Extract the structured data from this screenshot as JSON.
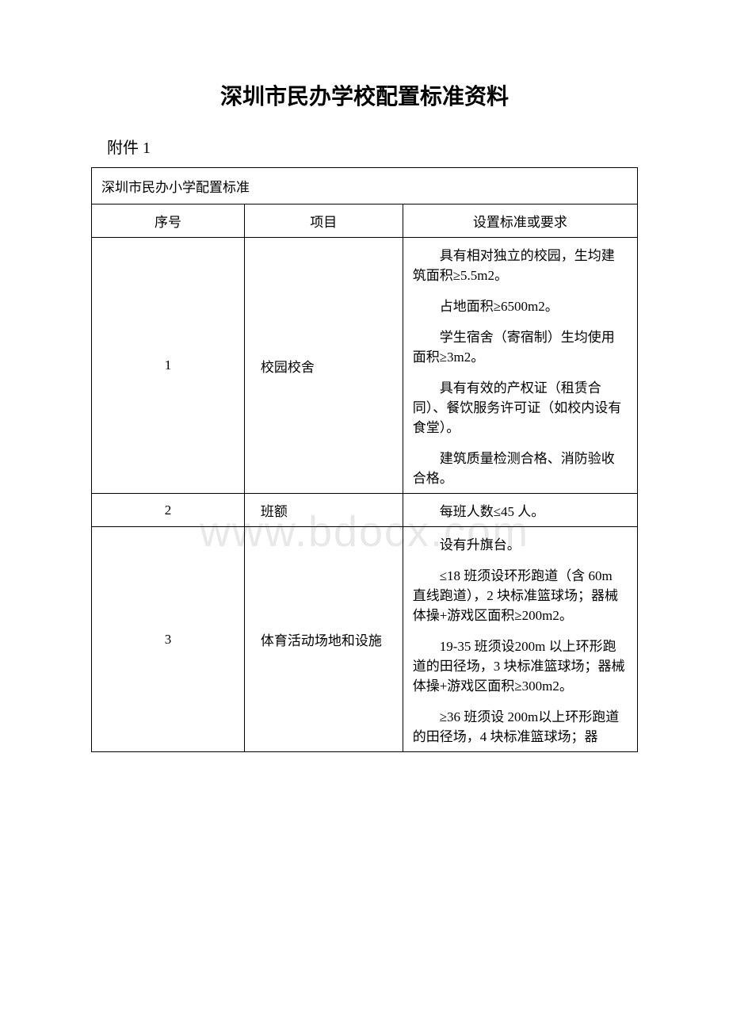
{
  "title": "深圳市民办学校配置标准资料",
  "subtitle": "附件 1",
  "watermark": "www.bdocx.com",
  "table": {
    "caption": "深圳市民办小学配置标准",
    "headers": {
      "seq": "序号",
      "item": "项目",
      "req": "设置标准或要求"
    },
    "rows": [
      {
        "seq": "1",
        "item": "校园校舍",
        "reqs": [
          "具有相对独立的校园，生均建筑面积≥5.5m2。",
          "占地面积≥6500m2。",
          "学生宿舍（寄宿制）生均使用面积≥3m2。",
          "具有有效的产权证（租赁合同）、餐饮服务许可证（如校内设有食堂）。",
          "建筑质量检测合格、消防验收合格。"
        ]
      },
      {
        "seq": "2",
        "item": "班额",
        "reqs": [
          "每班人数≤45 人。"
        ]
      },
      {
        "seq": "3",
        "item": "体育活动场地和设施",
        "reqs": [
          "设有升旗台。",
          "≤18 班须设环形跑道（含 60m 直线跑道），2 块标准篮球场；器械体操+游戏区面积≥200m2。",
          "19-35 班须设200m 以上环形跑道的田径场，3 块标准篮球场；器械体操+游戏区面积≥300m2。",
          "≥36 班须设 200m以上环形跑道的田径场，4 块标准篮球场；器"
        ]
      }
    ]
  }
}
